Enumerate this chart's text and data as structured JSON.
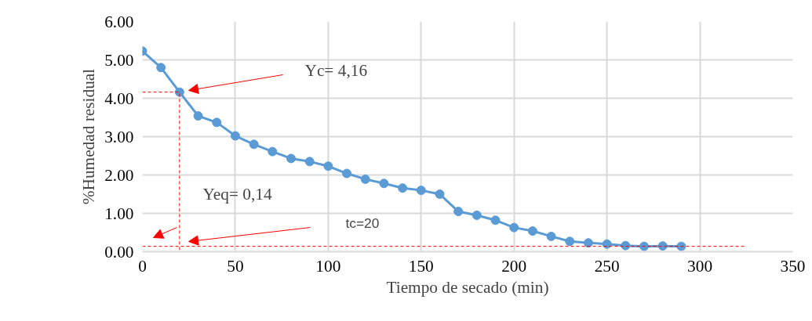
{
  "chart_data": {
    "type": "line",
    "xlabel": "Tiempo de secado (min)",
    "ylabel": "%Humedad residual",
    "xlim": [
      0,
      350
    ],
    "xticks": [
      0,
      50,
      100,
      150,
      200,
      250,
      300,
      350
    ],
    "ylim": [
      0,
      6
    ],
    "yticks": [
      {
        "value": 0,
        "label": "0.00"
      },
      {
        "value": 1,
        "label": "1.00"
      },
      {
        "value": 2,
        "label": "2.00"
      },
      {
        "value": 3,
        "label": "3.00"
      },
      {
        "value": 4,
        "label": "4.00"
      },
      {
        "value": 5,
        "label": "5.00"
      },
      {
        "value": 6,
        "label": "6.00"
      }
    ],
    "grid": true,
    "marker": "circle",
    "line_style": "solid",
    "series": [
      {
        "color": "#5b9bd5",
        "x": [
          0,
          10,
          20,
          30,
          40,
          50,
          60,
          70,
          80,
          90,
          100,
          110,
          120,
          130,
          140,
          150,
          160,
          170,
          180,
          190,
          200,
          210,
          220,
          230,
          240,
          250,
          260,
          270,
          280,
          290
        ],
        "values": [
          5.23,
          4.8,
          4.16,
          3.54,
          3.37,
          3.02,
          2.8,
          2.61,
          2.43,
          2.35,
          2.23,
          2.04,
          1.89,
          1.78,
          1.66,
          1.6,
          1.5,
          1.05,
          0.95,
          0.82,
          0.63,
          0.54,
          0.4,
          0.27,
          0.23,
          0.2,
          0.16,
          0.14,
          0.15,
          0.14
        ]
      },
      {
        "color": "#ff0000",
        "line_style": "dashed",
        "marker": "none",
        "x": [
          0,
          20,
          20
        ],
        "values": [
          4.16,
          4.16,
          0
        ]
      },
      {
        "color": "#ff0000",
        "line_style": "dashed",
        "marker": "none",
        "x": [
          0,
          325
        ],
        "values": [
          0.14,
          0.14
        ]
      }
    ],
    "annotations": [
      "Yc= 4,16",
      "Yeq= 0,14",
      "tc=20"
    ]
  }
}
